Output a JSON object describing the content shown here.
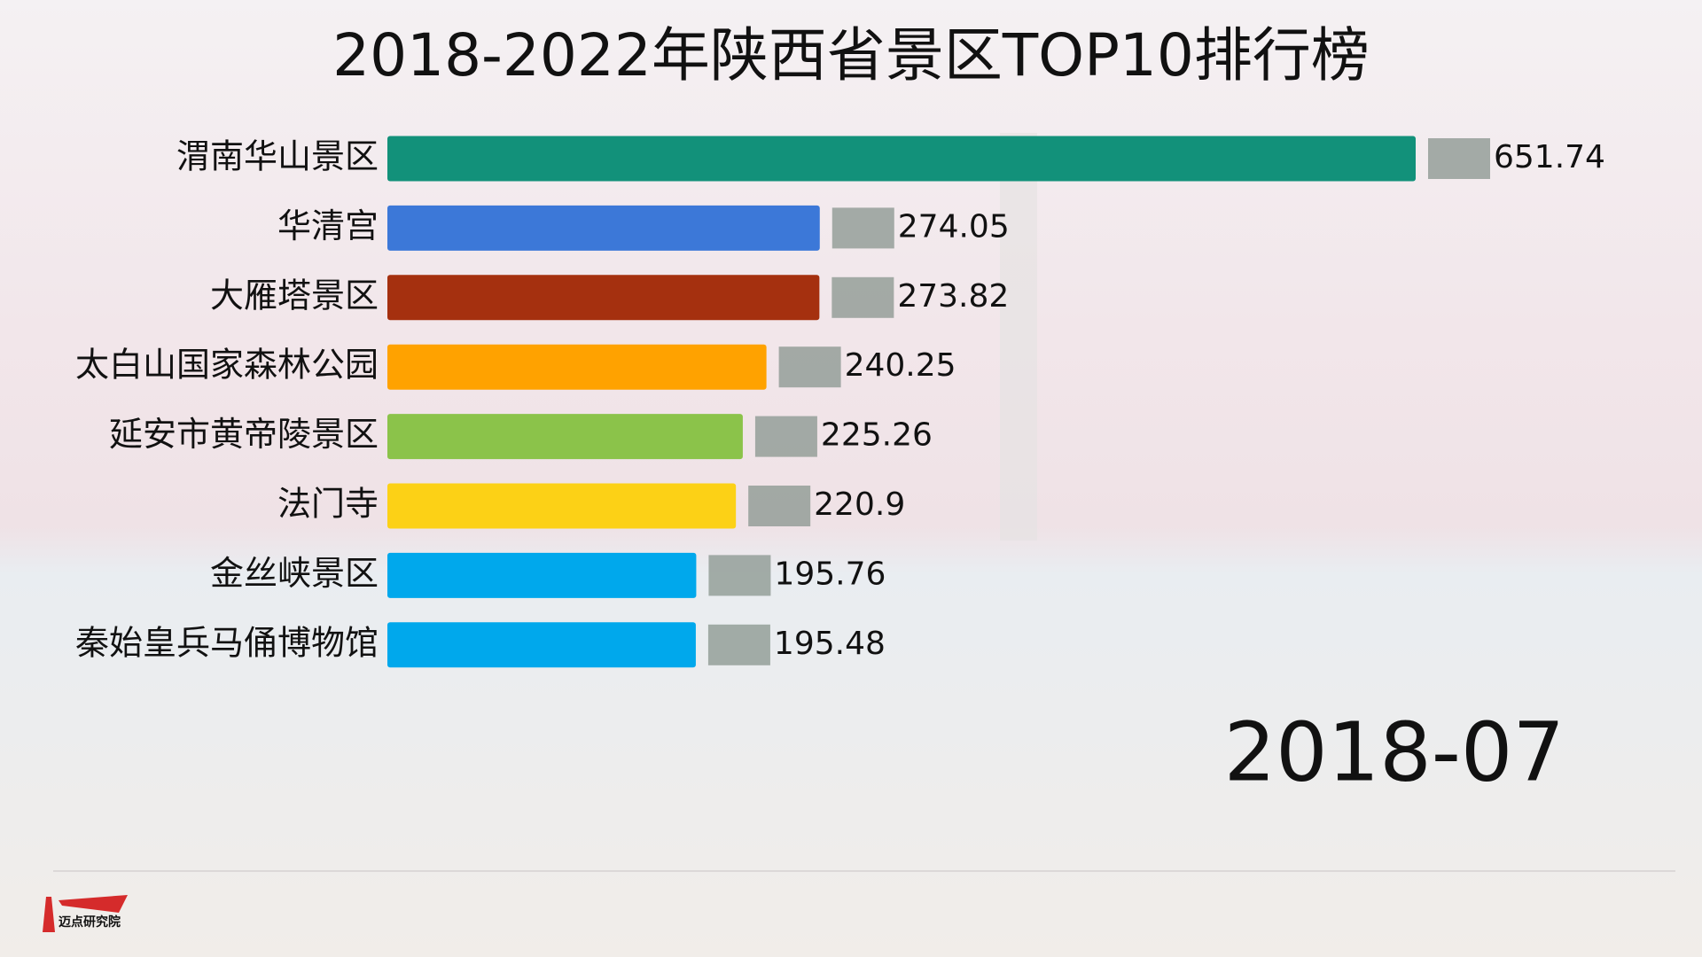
{
  "chart_data": {
    "type": "bar",
    "orientation": "horizontal",
    "title": "2018-2022年陕西省景区TOP10排行榜",
    "categories": [
      "渭南华山景区",
      "华清宫",
      "大雁塔景区",
      "太白山国家森林公园",
      "延安市黄帝陵景区",
      "法门寺",
      "金丝峡景区",
      "秦始皇兵马俑博物馆"
    ],
    "values": [
      651.74,
      274.05,
      273.82,
      240.25,
      225.26,
      220.9,
      195.76,
      195.48
    ],
    "colors": [
      "#12917a",
      "#3c78d8",
      "#a5300f",
      "#ffa200",
      "#8bc34a",
      "#fcd116",
      "#00a8ec",
      "#00a8ec"
    ],
    "date": "2018-07"
  },
  "logo": {
    "text": "迈点研究院"
  }
}
